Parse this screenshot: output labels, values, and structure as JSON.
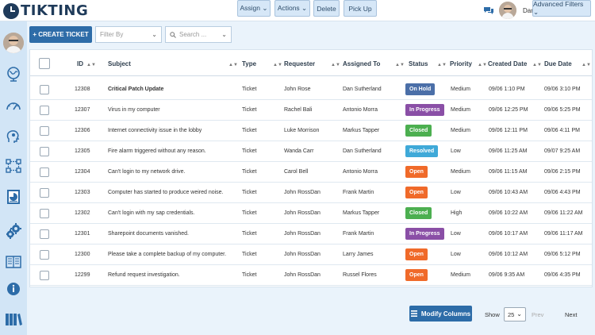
{
  "app": {
    "logo": "TIKTING",
    "user_name": "Dan Sutherland",
    "user_chevron": "⌄"
  },
  "toolbar": {
    "create_label": "+ CREATE TICKET",
    "filter_placeholder": "Filter By",
    "search_placeholder": "Search ...",
    "assign_label": "Assign ⌄",
    "actions_label": "Actions ⌄",
    "delete_label": "Delete",
    "pickup_label": "Pick Up",
    "advanced_label": "Advanced Filters ⌄"
  },
  "table": {
    "columns": [
      "ID",
      "Subject",
      "Type",
      "Requester",
      "Assigned To",
      "Status",
      "Priority",
      "Created Date",
      "Due Date"
    ],
    "rows": [
      {
        "id": "12308",
        "subject": "Critical Patch Update",
        "type": "Ticket",
        "requester": "John Rose",
        "assigned": "Dan Sutherland",
        "status": "On Hold",
        "priority": "Medium",
        "created": "09/06 1:10 PM",
        "due": "09/06 3:10 PM"
      },
      {
        "id": "12307",
        "subject": "Virus in my computer",
        "type": "Ticket",
        "requester": "Rachel Bali",
        "assigned": "Antonio Morra",
        "status": "In Progress",
        "priority": "Medium",
        "created": "09/06 12:25 PM",
        "due": "09/06 5:25 PM"
      },
      {
        "id": "12306",
        "subject": "Internet connectivity issue in the lobby",
        "type": "Ticket",
        "requester": "Luke Morrison",
        "assigned": "Markus Tapper",
        "status": "Closed",
        "priority": "Medium",
        "created": "09/06 12:11 PM",
        "due": "09/06 4:11 PM"
      },
      {
        "id": "12305",
        "subject": "Fire alarm triggered without any reason.",
        "type": "Ticket",
        "requester": "Wanda Carr",
        "assigned": "Dan Sutherland",
        "status": "Resolved",
        "priority": "Low",
        "created": "09/06 11:25 AM",
        "due": "09/07 9:25 AM"
      },
      {
        "id": "12304",
        "subject": "Can't login to my network drive.",
        "type": "Ticket",
        "requester": "Carol Bell",
        "assigned": "Antonio Morra",
        "status": "Open",
        "priority": "Medium",
        "created": "09/06 11:15 AM",
        "due": "09/06 2:15 PM"
      },
      {
        "id": "12303",
        "subject": "Computer has started to produce weired noise.",
        "type": "Ticket",
        "requester": "John RossDan",
        "assigned": "Frank Martin",
        "status": "Open",
        "priority": "Low",
        "created": "09/06 10:43 AM",
        "due": "09/06 4:43 PM"
      },
      {
        "id": "12302",
        "subject": "Can't login with my sap credentials.",
        "type": "Ticket",
        "requester": "John RossDan",
        "assigned": "Markus Tapper",
        "status": "Closed",
        "priority": "High",
        "created": "09/06 10:22 AM",
        "due": "09/06 11:22 AM"
      },
      {
        "id": "12301",
        "subject": "Sharepoint documents vanished.",
        "type": "Ticket",
        "requester": "John RossDan",
        "assigned": "Frank Martin",
        "status": "In Progress",
        "priority": "Low",
        "created": "09/06 10:17 AM",
        "due": "09/06 11:17 AM"
      },
      {
        "id": "12300",
        "subject": "Please take a complete backup of my computer.",
        "type": "Ticket",
        "requester": "John RossDan",
        "assigned": "Larry James",
        "status": "Open",
        "priority": "Low",
        "created": "09/06 10:12 AM",
        "due": "09/06 5:12 PM"
      },
      {
        "id": "12299",
        "subject": "Refund request investigation.",
        "type": "Ticket",
        "requester": "John RossDan",
        "assigned": "Russel Flores",
        "status": "Open",
        "priority": "Medium",
        "created": "09/06 9:35 AM",
        "due": "09/06 4:35 PM"
      }
    ]
  },
  "status_colors": {
    "On Hold": "#4b6fa8",
    "In Progress": "#8a4fa6",
    "Closed": "#4caf50",
    "Resolved": "#3fa9d8",
    "Open": "#f06a2a"
  },
  "footer": {
    "modify_label": "Modify Columns",
    "show_label": "Show",
    "page_size": "25",
    "page_size_chevron": "⌄",
    "prev_label": "Prev",
    "next_label": "Next"
  },
  "sidebar_icons": [
    "globe-icon",
    "dashboard-gauge-icon",
    "user-head-icon",
    "workflow-icon",
    "report-chart-icon",
    "settings-gears-icon",
    "knowledge-base-icon",
    "info-icon",
    "library-books-icon"
  ]
}
